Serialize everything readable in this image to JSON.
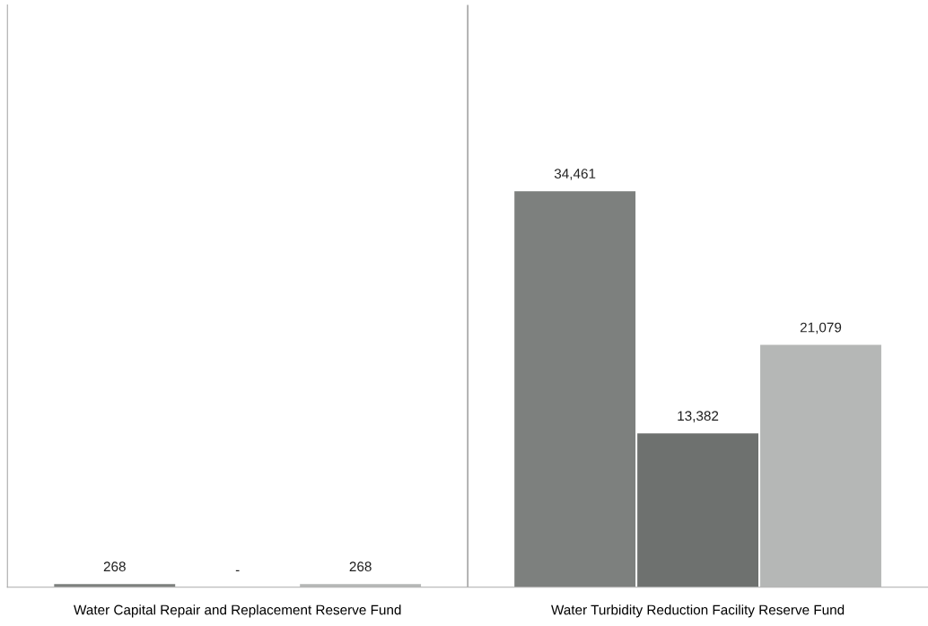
{
  "chart_data": {
    "type": "bar",
    "categories": [
      "Water Capital Repair and Replacement Reserve Fund",
      "Water Turbidity Reduction Facility Reserve Fund"
    ],
    "series": [
      {
        "color": "#7d807e",
        "values": [
          268,
          34461
        ],
        "value_labels": [
          "268",
          "34,461"
        ]
      },
      {
        "color": "#6e716f",
        "values": [
          0,
          13382
        ],
        "value_labels": [
          "-",
          "13,382"
        ]
      },
      {
        "color": "#b5b7b6",
        "values": [
          268,
          21079
        ],
        "value_labels": [
          "268",
          "21,079"
        ]
      }
    ],
    "grid": "x",
    "legend": false
  }
}
